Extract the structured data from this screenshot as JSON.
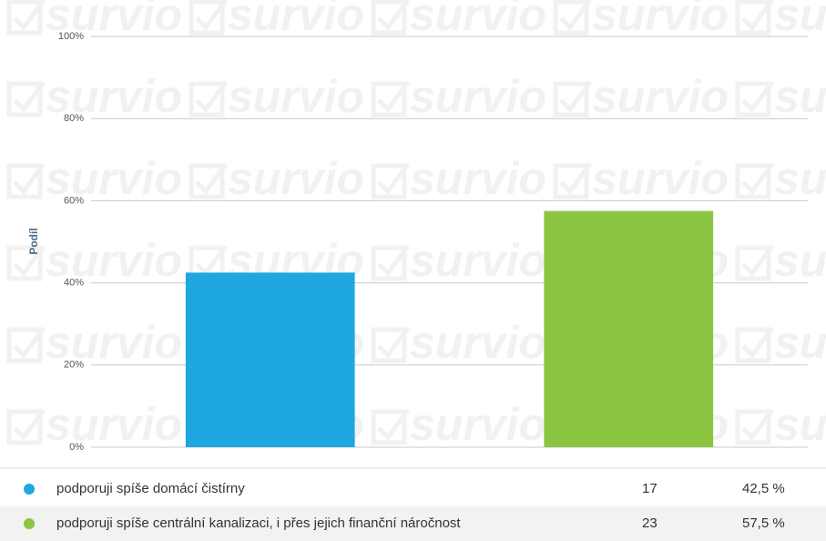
{
  "watermark": "survio",
  "chart_data": {
    "type": "bar",
    "y_label": "Podíl",
    "categories": [
      "podporuji spíše domácí čistírny",
      "podporuji spíše centrální kanalizaci, i přes jejich finanční náročnost"
    ],
    "values": [
      42.5,
      57.5
    ],
    "value_labels": [
      "42,5 %",
      "57,5 %"
    ],
    "counts": [
      17,
      23
    ],
    "colors": [
      "#1ea7e1",
      "#8bc541"
    ],
    "ylim": [
      0,
      100
    ],
    "yticks": [
      {
        "value": 0,
        "label": "0%"
      },
      {
        "value": 20,
        "label": "20%"
      },
      {
        "value": 40,
        "label": "40%"
      },
      {
        "value": 60,
        "label": "60%"
      },
      {
        "value": 80,
        "label": "80%"
      },
      {
        "value": 100,
        "label": "100%"
      }
    ],
    "grid": true
  }
}
